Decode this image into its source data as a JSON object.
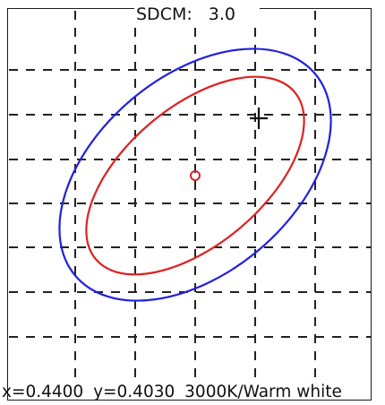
{
  "header": {
    "label": "SDCM:",
    "value": "3.0"
  },
  "readout": {
    "x": "x=0.4400",
    "y": "y=0.4030",
    "cct": "3000K/Warm white"
  },
  "colors": {
    "outer_ellipse": "#2222dd",
    "inner_ellipse": "#dd2222",
    "grid": "#222222",
    "marker": "#111111",
    "center": "#dd2222"
  }
}
